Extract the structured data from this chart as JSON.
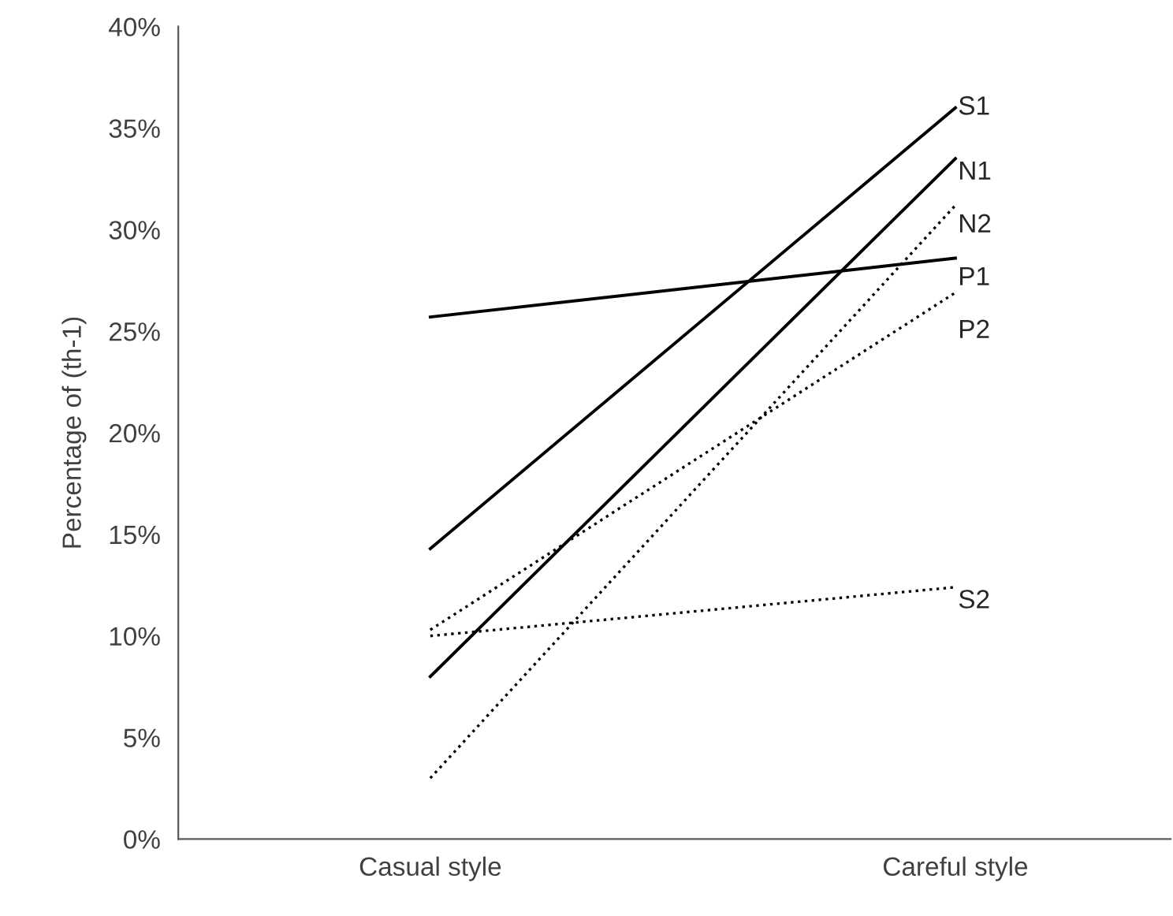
{
  "chart_data": {
    "type": "line",
    "ylabel": "Percentage of (th-1)",
    "categories": [
      "Casual style",
      "Careful style"
    ],
    "ylim": [
      0,
      40
    ],
    "yticks": [
      {
        "value": 0,
        "label": "0%"
      },
      {
        "value": 5,
        "label": "5%"
      },
      {
        "value": 10,
        "label": "10%"
      },
      {
        "value": 15,
        "label": "15%"
      },
      {
        "value": 20,
        "label": "20%"
      },
      {
        "value": 25,
        "label": "25%"
      },
      {
        "value": 30,
        "label": "30%"
      },
      {
        "value": 35,
        "label": "35%"
      },
      {
        "value": 40,
        "label": "40%"
      }
    ],
    "grid": false,
    "legend": false,
    "marker": "none",
    "series": [
      {
        "name": "S1",
        "color": "#000000",
        "line_style": "solid",
        "values": [
          14.3,
          36.0
        ]
      },
      {
        "name": "N1",
        "color": "#000000",
        "line_style": "solid",
        "values": [
          8.0,
          33.5
        ]
      },
      {
        "name": "N2",
        "color": "#000000",
        "line_style": "dotted",
        "values": [
          3.0,
          31.2
        ]
      },
      {
        "name": "P1",
        "color": "#000000",
        "line_style": "solid",
        "values": [
          25.7,
          28.6
        ]
      },
      {
        "name": "P2",
        "color": "#000000",
        "line_style": "dotted",
        "values": [
          10.3,
          26.9
        ]
      },
      {
        "name": "S2",
        "color": "#000000",
        "line_style": "dotted",
        "values": [
          10.0,
          12.4
        ]
      }
    ]
  }
}
